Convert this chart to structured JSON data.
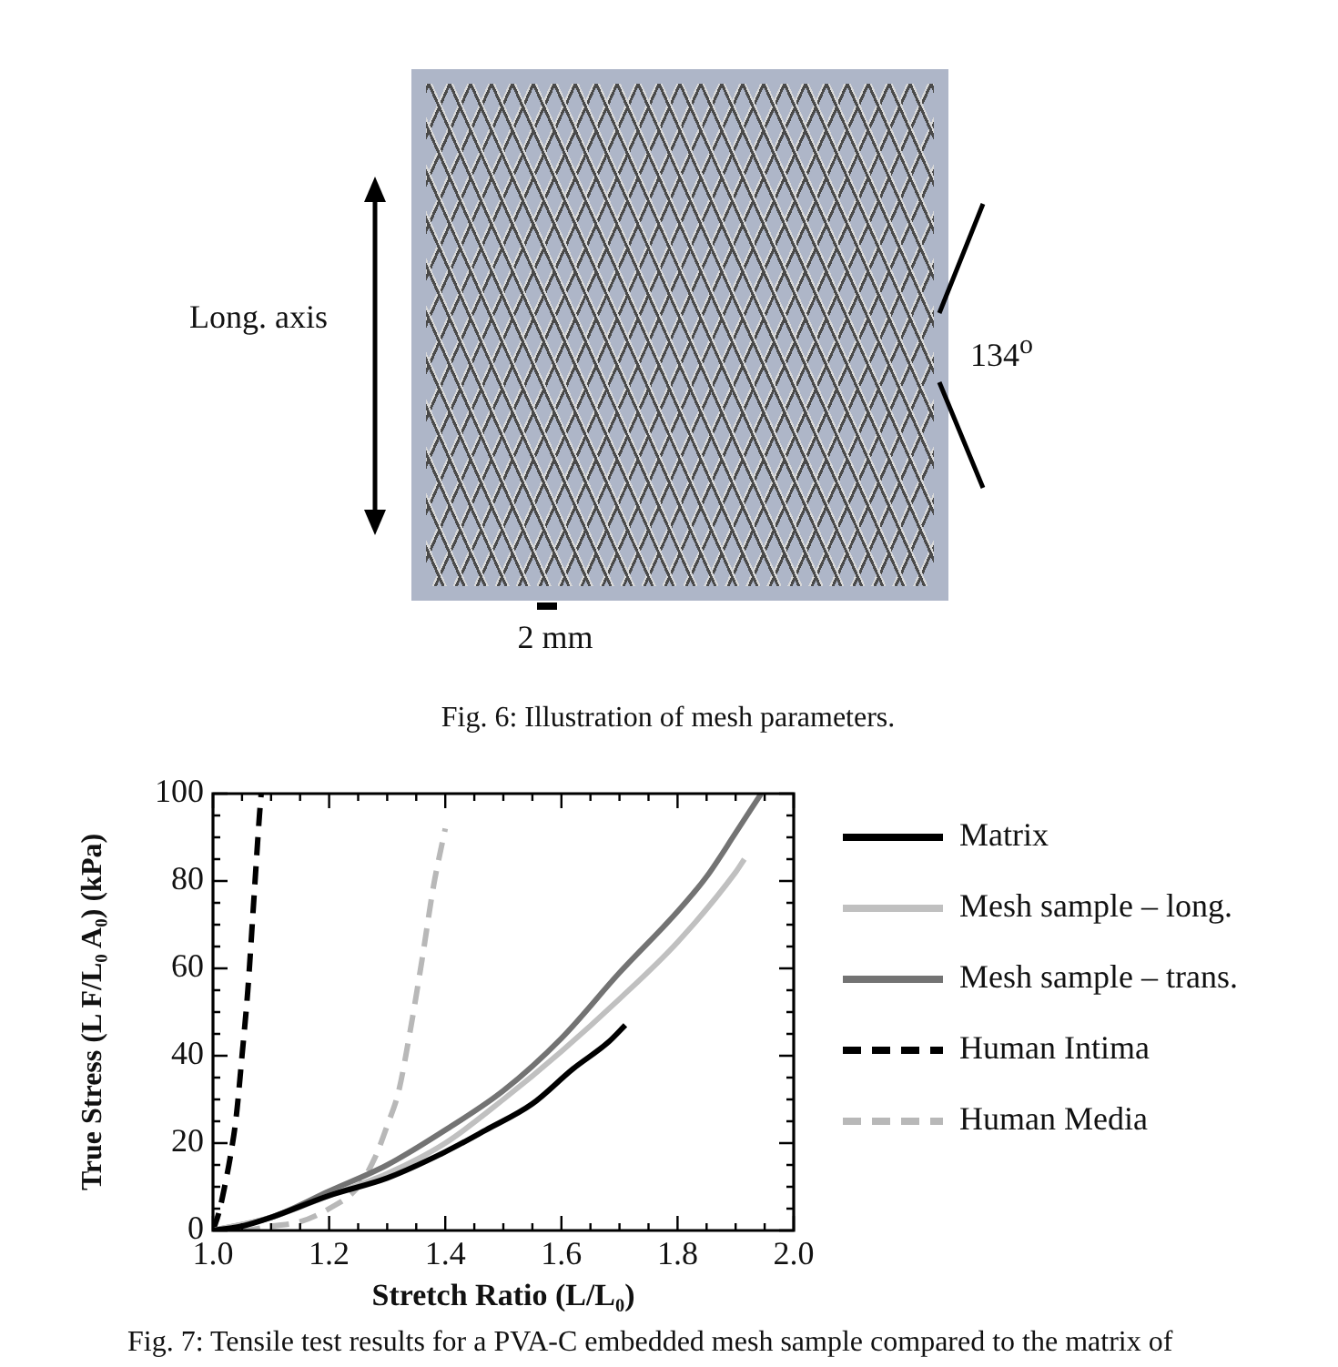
{
  "chart_data": [
    {
      "type": "other",
      "annotations": [
        "Long. axis",
        "134$^{o}$",
        "2 mm",
        "Fig. 6: Illustration of mesh parameters."
      ]
    },
    {
      "type": "line",
      "xlabel": "Stretch Ratio (L/L₀)",
      "ylabel": "True Stress (L F/L₀ A₀) (kPa)",
      "xlim": [
        1,
        2
      ],
      "ylim": [
        0,
        100
      ],
      "xticks": [
        {
          "value": 1,
          "label": "1.0"
        },
        {
          "value": 1.05,
          "label": null
        },
        {
          "value": 1.1,
          "label": null
        },
        {
          "value": 1.15,
          "label": null
        },
        1.2,
        {
          "value": 1.25,
          "label": null
        },
        {
          "value": 1.3,
          "label": null
        },
        {
          "value": 1.35,
          "label": null
        },
        1.4,
        {
          "value": 1.45,
          "label": null
        },
        {
          "value": 1.5,
          "label": null
        },
        {
          "value": 1.55,
          "label": null
        },
        1.6,
        {
          "value": 1.65,
          "label": null
        },
        {
          "value": 1.7,
          "label": null
        },
        {
          "value": 1.75,
          "label": null
        },
        1.8,
        {
          "value": 1.85,
          "label": null
        },
        {
          "value": 1.9,
          "label": null
        },
        {
          "value": 1.95,
          "label": null
        },
        {
          "value": 2,
          "label": "2.0"
        }
      ],
      "yticks": [
        0,
        {
          "value": 5,
          "label": null
        },
        {
          "value": 10,
          "label": null
        },
        {
          "value": 15,
          "label": null
        },
        20,
        {
          "value": 25,
          "label": null
        },
        {
          "value": 30,
          "label": null
        },
        {
          "value": 35,
          "label": null
        },
        40,
        {
          "value": 45,
          "label": null
        },
        {
          "value": 50,
          "label": null
        },
        {
          "value": 55,
          "label": null
        },
        60,
        {
          "value": 65,
          "label": null
        },
        {
          "value": 70,
          "label": null
        },
        {
          "value": 75,
          "label": null
        },
        80,
        {
          "value": 85,
          "label": null
        },
        {
          "value": 90,
          "label": null
        },
        {
          "value": 95,
          "label": null
        },
        100
      ],
      "grid": false,
      "legend": "right",
      "marker": "none",
      "series": [
        {
          "name": "Matrix",
          "color": "#000000",
          "line_style": "solid",
          "x": [
            1,
            1.05,
            1.1,
            1.2,
            1.3,
            1.4,
            1.47,
            1.55,
            1.62,
            1.68,
            1.71
          ],
          "values": [
            0,
            1,
            3,
            8,
            12,
            18,
            23,
            29,
            37,
            43,
            47
          ]
        },
        {
          "name": "Mesh sample – long.",
          "color": "#c0c0c0",
          "line_style": "solid",
          "x": [
            1,
            1.1,
            1.2,
            1.3,
            1.4,
            1.5,
            1.6,
            1.7,
            1.8,
            1.9,
            1.915
          ],
          "values": [
            0,
            3,
            8,
            13,
            20,
            30,
            41,
            53,
            66,
            82,
            85
          ]
        },
        {
          "name": "Mesh sample – trans.",
          "color": "#737373",
          "line_style": "solid",
          "x": [
            1,
            1.1,
            1.2,
            1.3,
            1.4,
            1.5,
            1.6,
            1.7,
            1.8,
            1.85,
            1.9,
            1.944
          ],
          "values": [
            0,
            3,
            9,
            15,
            23,
            32,
            44,
            59,
            73,
            81,
            91,
            100
          ]
        },
        {
          "name": "Human Intima",
          "color": "#000000",
          "line_style": "dashed",
          "x": [
            1,
            1.01,
            1.02,
            1.03,
            1.04,
            1.05,
            1.06,
            1.07,
            1.08,
            1.083
          ],
          "values": [
            0,
            4,
            10,
            17,
            26,
            40,
            55,
            75,
            95,
            100
          ]
        },
        {
          "name": "Human Media",
          "color": "#b8b8b8",
          "line_style": "dashed",
          "x": [
            1,
            1.05,
            1.1,
            1.15,
            1.2,
            1.25,
            1.28,
            1.3,
            1.32,
            1.34,
            1.36,
            1.38,
            1.4
          ],
          "values": [
            0,
            0,
            1,
            2,
            5,
            10,
            17,
            24,
            32,
            46,
            62,
            79,
            92
          ]
        }
      ],
      "annotations": [
        "Fig. 7: Tensile test results for a PVA-C embedded mesh sample compared to the matrix of"
      ]
    }
  ]
}
